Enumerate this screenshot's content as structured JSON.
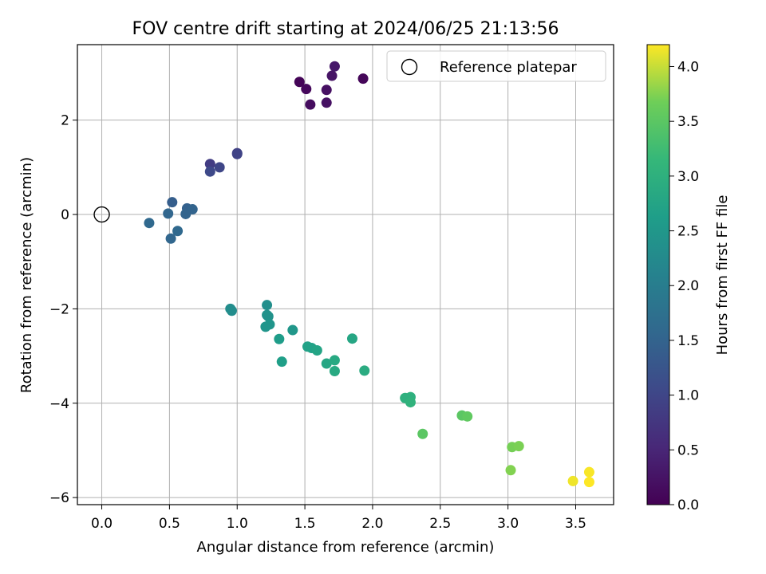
{
  "chart_data": {
    "type": "scatter",
    "title": "FOV centre drift starting at 2024/06/25 21:13:56",
    "xlabel": "Angular distance from reference (arcmin)",
    "ylabel": "Rotation from reference (arcmin)",
    "xlim": [
      -0.18,
      3.78
    ],
    "ylim": [
      -6.15,
      3.6
    ],
    "xticks": [
      0.0,
      0.5,
      1.0,
      1.5,
      2.0,
      2.5,
      3.0,
      3.5
    ],
    "xtick_labels": [
      "0.0",
      "0.5",
      "1.0",
      "1.5",
      "2.0",
      "2.5",
      "3.0",
      "3.5"
    ],
    "yticks": [
      -6,
      -4,
      -2,
      0,
      2
    ],
    "ytick_labels": [
      "−6",
      "−4",
      "−2",
      "0",
      "2"
    ],
    "grid": true,
    "legend": {
      "position": "top-right",
      "entries": [
        "Reference platepar"
      ]
    },
    "reference_point": {
      "x": 0.0,
      "y": 0.0
    },
    "colorbar": {
      "label": "Hours from first FF file",
      "range": [
        0.0,
        4.2
      ],
      "ticks": [
        0.0,
        0.5,
        1.0,
        1.5,
        2.0,
        2.5,
        3.0,
        3.5,
        4.0
      ],
      "tick_labels": [
        "0.0",
        "0.5",
        "1.0",
        "1.5",
        "2.0",
        "2.5",
        "3.0",
        "3.5",
        "4.0"
      ],
      "colormap": "viridis"
    },
    "points": [
      {
        "x": 1.46,
        "y": 2.81,
        "c": 0.05
      },
      {
        "x": 1.51,
        "y": 2.66,
        "c": 0.1
      },
      {
        "x": 1.54,
        "y": 2.33,
        "c": 0.15
      },
      {
        "x": 1.66,
        "y": 2.64,
        "c": 0.2
      },
      {
        "x": 1.66,
        "y": 2.37,
        "c": 0.22
      },
      {
        "x": 1.7,
        "y": 2.94,
        "c": 0.25
      },
      {
        "x": 1.72,
        "y": 3.14,
        "c": 0.3
      },
      {
        "x": 1.93,
        "y": 2.88,
        "c": 0.08
      },
      {
        "x": 1.0,
        "y": 1.3,
        "c": 0.9
      },
      {
        "x": 1.0,
        "y": 1.28,
        "c": 0.95
      },
      {
        "x": 0.8,
        "y": 1.07,
        "c": 0.85
      },
      {
        "x": 0.87,
        "y": 1.0,
        "c": 1.0
      },
      {
        "x": 0.8,
        "y": 0.91,
        "c": 1.05
      },
      {
        "x": 0.52,
        "y": 0.26,
        "c": 1.4
      },
      {
        "x": 0.63,
        "y": 0.13,
        "c": 1.45
      },
      {
        "x": 0.67,
        "y": 0.11,
        "c": 1.5
      },
      {
        "x": 0.49,
        "y": 0.02,
        "c": 1.55
      },
      {
        "x": 0.62,
        "y": 0.01,
        "c": 1.5
      },
      {
        "x": 0.35,
        "y": -0.18,
        "c": 1.6
      },
      {
        "x": 0.56,
        "y": -0.35,
        "c": 1.6
      },
      {
        "x": 0.51,
        "y": -0.51,
        "c": 1.55
      },
      {
        "x": 0.95,
        "y": -2.0,
        "c": 2.3
      },
      {
        "x": 0.96,
        "y": -2.04,
        "c": 2.3
      },
      {
        "x": 1.22,
        "y": -1.92,
        "c": 2.35
      },
      {
        "x": 1.22,
        "y": -2.13,
        "c": 2.4
      },
      {
        "x": 1.23,
        "y": -2.16,
        "c": 2.4
      },
      {
        "x": 1.24,
        "y": -2.33,
        "c": 2.45
      },
      {
        "x": 1.21,
        "y": -2.38,
        "c": 2.45
      },
      {
        "x": 1.41,
        "y": -2.45,
        "c": 2.5
      },
      {
        "x": 1.31,
        "y": -2.64,
        "c": 2.6
      },
      {
        "x": 1.33,
        "y": -3.12,
        "c": 2.65
      },
      {
        "x": 1.52,
        "y": -2.8,
        "c": 2.7
      },
      {
        "x": 1.55,
        "y": -2.83,
        "c": 2.7
      },
      {
        "x": 1.59,
        "y": -2.88,
        "c": 2.75
      },
      {
        "x": 1.66,
        "y": -3.16,
        "c": 2.8
      },
      {
        "x": 1.72,
        "y": -3.09,
        "c": 2.85
      },
      {
        "x": 1.72,
        "y": -3.32,
        "c": 2.85
      },
      {
        "x": 1.85,
        "y": -2.63,
        "c": 2.8
      },
      {
        "x": 1.94,
        "y": -3.31,
        "c": 2.9
      },
      {
        "x": 2.24,
        "y": -3.89,
        "c": 3.0
      },
      {
        "x": 2.28,
        "y": -3.87,
        "c": 3.0
      },
      {
        "x": 2.28,
        "y": -3.98,
        "c": 3.05
      },
      {
        "x": 2.37,
        "y": -4.65,
        "c": 3.5
      },
      {
        "x": 2.66,
        "y": -4.26,
        "c": 3.5
      },
      {
        "x": 2.7,
        "y": -4.28,
        "c": 3.55
      },
      {
        "x": 3.03,
        "y": -4.93,
        "c": 3.7
      },
      {
        "x": 3.08,
        "y": -4.91,
        "c": 3.72
      },
      {
        "x": 3.02,
        "y": -5.42,
        "c": 3.75
      },
      {
        "x": 3.48,
        "y": -5.65,
        "c": 4.15
      },
      {
        "x": 3.6,
        "y": -5.46,
        "c": 4.18
      },
      {
        "x": 3.6,
        "y": -5.67,
        "c": 4.2
      }
    ]
  }
}
